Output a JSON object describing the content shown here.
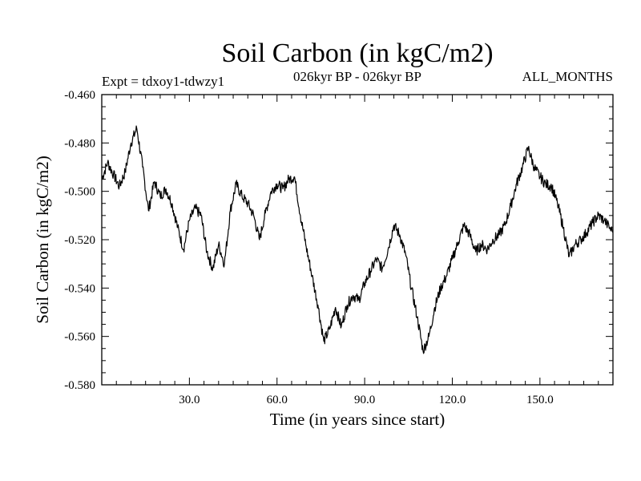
{
  "chart_data": {
    "type": "line",
    "title": "Soil Carbon (in kgC/m2)",
    "subtitle_left": "Expt = tdxoy1-tdwzy1",
    "subtitle_center": "026kyr BP - 026kyr BP",
    "subtitle_right": "ALL_MONTHS",
    "xlabel": "Time (in years since start)",
    "ylabel": "Soil Carbon (in kgC/m2)",
    "xlim": [
      0,
      175
    ],
    "ylim": [
      -0.58,
      -0.46
    ],
    "xticks": [
      {
        "value": 30,
        "label": "30.0"
      },
      {
        "value": 60,
        "label": "60.0"
      },
      {
        "value": 90,
        "label": "90.0"
      },
      {
        "value": 120,
        "label": "120.0"
      },
      {
        "value": 150,
        "label": "150.0"
      }
    ],
    "yticks": [
      {
        "value": -0.46,
        "label": "-0.460"
      },
      {
        "value": -0.48,
        "label": "-0.480"
      },
      {
        "value": -0.5,
        "label": "-0.500"
      },
      {
        "value": -0.52,
        "label": "-0.520"
      },
      {
        "value": -0.54,
        "label": "-0.540"
      },
      {
        "value": -0.56,
        "label": "-0.560"
      },
      {
        "value": -0.58,
        "label": "-0.580"
      }
    ],
    "series": [
      {
        "name": "tdxoy1-tdwzy1",
        "x": [
          0,
          2,
          4,
          6,
          8,
          10,
          12,
          14,
          16,
          18,
          20,
          22,
          24,
          26,
          28,
          30,
          32,
          34,
          36,
          38,
          40,
          42,
          44,
          46,
          48,
          50,
          52,
          54,
          56,
          58,
          60,
          62,
          64,
          66,
          68,
          70,
          72,
          74,
          76,
          78,
          80,
          82,
          84,
          86,
          88,
          90,
          92,
          94,
          96,
          98,
          100,
          102,
          104,
          106,
          108,
          110,
          112,
          114,
          116,
          118,
          120,
          122,
          124,
          126,
          128,
          130,
          132,
          134,
          136,
          138,
          140,
          142,
          144,
          146,
          148,
          150,
          152,
          154,
          156,
          158,
          160,
          162,
          164,
          166,
          168,
          170,
          172,
          175
        ],
        "values": [
          -0.495,
          -0.488,
          -0.493,
          -0.498,
          -0.492,
          -0.48,
          -0.474,
          -0.49,
          -0.508,
          -0.496,
          -0.502,
          -0.499,
          -0.505,
          -0.515,
          -0.524,
          -0.512,
          -0.507,
          -0.51,
          -0.525,
          -0.532,
          -0.522,
          -0.53,
          -0.508,
          -0.497,
          -0.502,
          -0.505,
          -0.51,
          -0.52,
          -0.509,
          -0.5,
          -0.497,
          -0.499,
          -0.495,
          -0.494,
          -0.51,
          -0.523,
          -0.535,
          -0.547,
          -0.562,
          -0.557,
          -0.548,
          -0.556,
          -0.547,
          -0.543,
          -0.545,
          -0.538,
          -0.533,
          -0.528,
          -0.532,
          -0.524,
          -0.514,
          -0.518,
          -0.526,
          -0.54,
          -0.552,
          -0.566,
          -0.56,
          -0.548,
          -0.54,
          -0.535,
          -0.528,
          -0.521,
          -0.514,
          -0.518,
          -0.525,
          -0.522,
          -0.524,
          -0.52,
          -0.518,
          -0.514,
          -0.506,
          -0.497,
          -0.49,
          -0.482,
          -0.49,
          -0.494,
          -0.497,
          -0.498,
          -0.505,
          -0.515,
          -0.527,
          -0.522,
          -0.52,
          -0.517,
          -0.513,
          -0.51,
          -0.512,
          -0.517
        ]
      }
    ]
  }
}
